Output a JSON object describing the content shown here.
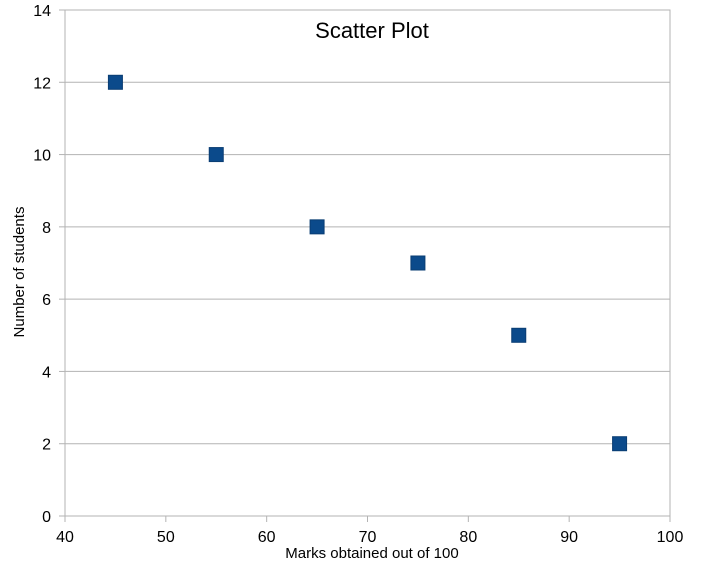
{
  "chart_data": {
    "type": "scatter",
    "title": "Scatter Plot",
    "xlabel": "Marks obtained out of 100",
    "ylabel": "Number of students",
    "xlim": [
      40,
      100
    ],
    "ylim": [
      0,
      14
    ],
    "xticks": [
      40,
      50,
      60,
      70,
      80,
      90,
      100
    ],
    "yticks": [
      0,
      2,
      4,
      6,
      8,
      10,
      12,
      14
    ],
    "grid": "horizontal",
    "legend": "none",
    "marker": "square",
    "series": [
      {
        "color": "#0b4a8b",
        "points": [
          {
            "x": 45,
            "y": 12
          },
          {
            "x": 55,
            "y": 10
          },
          {
            "x": 65,
            "y": 8
          },
          {
            "x": 75,
            "y": 7
          },
          {
            "x": 85,
            "y": 5
          },
          {
            "x": 95,
            "y": 2
          }
        ]
      }
    ]
  }
}
